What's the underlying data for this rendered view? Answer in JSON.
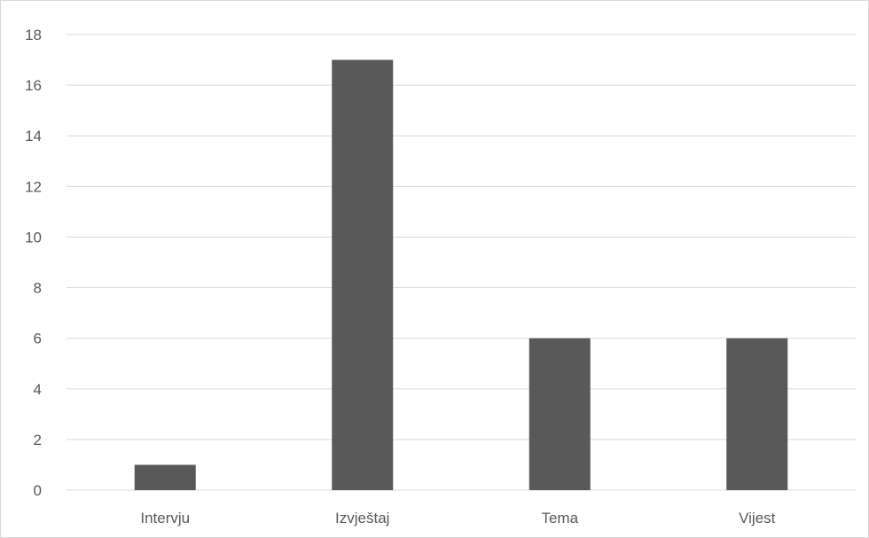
{
  "chart_data": {
    "type": "bar",
    "title": "",
    "xlabel": "",
    "ylabel": "",
    "categories": [
      "Intervju",
      "Izvještaj",
      "Tema",
      "Vijest"
    ],
    "values": [
      1,
      17,
      6,
      6
    ],
    "ylim": [
      0,
      18
    ],
    "ytick_step": 2,
    "yticks": [
      "0",
      "2",
      "4",
      "6",
      "8",
      "10",
      "12",
      "14",
      "16",
      "18"
    ],
    "grid": true,
    "legend": "none",
    "bar_color": "#595959",
    "grid_color": "#d9d9d9",
    "text_color": "#595959"
  }
}
